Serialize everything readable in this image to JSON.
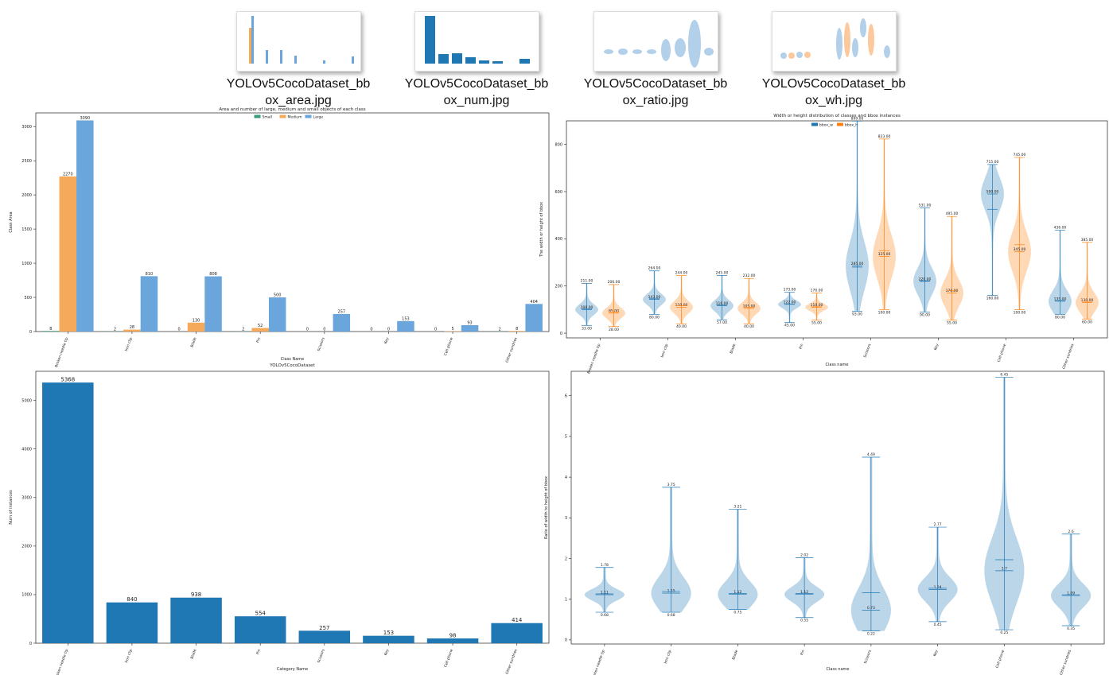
{
  "files": [
    {
      "lines": [
        "YOLOv5CocoDataset_bb",
        "ox_area.jpg"
      ]
    },
    {
      "lines": [
        "YOLOv5CocoDataset_bb",
        "ox_num.jpg"
      ]
    },
    {
      "lines": [
        "YOLOv5CocoDataset_bb",
        "ox_ratio.jpg"
      ]
    },
    {
      "lines": [
        "YOLOv5CocoDataset_bb",
        "ox_wh.jpg"
      ]
    }
  ],
  "chart_data": [
    {
      "type": "bar",
      "title": "Area and number of large, medium and small objects of each class",
      "x_label": "Class Name",
      "y_label": "Class Area",
      "categories": [
        "Broken needle tip",
        "Iron clip",
        "Blade",
        "Pin",
        "Scissors",
        "Key",
        "Cell phone",
        "Other sundries"
      ],
      "series": [
        {
          "name": "Small",
          "color": "#3a9a7a",
          "values": [
            8,
            2,
            0,
            2,
            0,
            0,
            0,
            2
          ]
        },
        {
          "name": "Medium",
          "color": "#f5a95b",
          "values": [
            2270,
            28,
            130,
            52,
            0,
            0,
            5,
            8
          ]
        },
        {
          "name": "Large",
          "color": "#6aa6dc",
          "values": [
            3090,
            810,
            808,
            500,
            257,
            153,
            93,
            404
          ]
        }
      ],
      "ylim": [
        0,
        3200
      ],
      "yticks": [
        0,
        500,
        1000,
        1500,
        2000,
        2500,
        3000
      ],
      "legend": "top"
    },
    {
      "type": "violin",
      "title": "Width or height distribution of classes and bbox instances",
      "x_label": "Class name",
      "y_label": "The width or height of bbox",
      "categories": [
        "Broken needle tip",
        "Iron clip",
        "Blade",
        "Pin",
        "Scissors",
        "Key",
        "Cell phone",
        "Other sundries"
      ],
      "series": [
        {
          "name": "bbox_w",
          "color": "#1f77b4",
          "max": [
            211,
            264,
            245,
            173,
            899,
            531,
            715,
            436
          ],
          "median": [
            100,
            143,
            116,
            122,
            285,
            220,
            590,
            135
          ],
          "mean": [
            104,
            146,
            119,
            123,
            280,
            222,
            525,
            140
          ],
          "min": [
            33,
            80,
            57,
            45,
            93,
            90,
            160,
            80
          ],
          "max_labels": [
            "211.00",
            "264.00",
            "245.00",
            "173.00",
            "899.00",
            "531.00",
            "715.00",
            "436.00"
          ],
          "median_labels": [
            "100.00",
            "143.00",
            "116.00",
            "122.00",
            "285.00",
            "220.00",
            "590.00",
            "135.00"
          ],
          "min_labels": [
            "33.00",
            "80.00",
            "57.00",
            "45.00",
            "93.00",
            "90.00",
            "160.00",
            "80.00"
          ]
        },
        {
          "name": "bbox_h",
          "color": "#ff7f0e",
          "max": [
            206,
            244,
            232,
            170,
            823,
            495,
            745,
            385
          ],
          "median": [
            85,
            110,
            105,
            110,
            325,
            170,
            345,
            130
          ],
          "mean": [
            90,
            116,
            110,
            112,
            350,
            180,
            375,
            135
          ],
          "min": [
            28,
            40,
            40,
            55,
            100,
            55,
            100,
            60
          ],
          "max_labels": [
            "206.00",
            "244.00",
            "232.00",
            "170.00",
            "823.00",
            "495.00",
            "745.00",
            "385.00"
          ],
          "median_labels": [
            "85.00",
            "110.00",
            "105.00",
            "110.00",
            "325.00",
            "170.00",
            "345.00",
            "130.00"
          ],
          "min_labels": [
            "28.00",
            "40.00",
            "40.00",
            "55.00",
            "100.00",
            "55.00",
            "100.00",
            "60.00"
          ]
        }
      ],
      "ylim": [
        -20,
        900
      ],
      "yticks": [
        0,
        200,
        400,
        600,
        800
      ],
      "legend": "top"
    },
    {
      "type": "bar",
      "title": "YOLOv5CocoDataset",
      "x_label": "Category Name",
      "y_label": "Num of instances",
      "categories": [
        "Broken needle tip",
        "Iron clip",
        "Blade",
        "Pin",
        "Scissors",
        "Key",
        "Cell phone",
        "Other sundries"
      ],
      "series": [
        {
          "color": "#1f77b4",
          "values": [
            5368,
            840,
            938,
            554,
            257,
            153,
            98,
            414
          ]
        }
      ],
      "ylim": [
        0,
        5600
      ],
      "yticks": [
        0,
        1000,
        2000,
        3000,
        4000,
        5000
      ]
    },
    {
      "type": "violin",
      "x_label": "Class name",
      "y_label": "Ratio of width to height of bbox",
      "categories": [
        "Broken needle tip",
        "Iron clip",
        "Blade",
        "Pin",
        "Scissors",
        "Key",
        "Cell phone",
        "Other sundries"
      ],
      "series": [
        {
          "color": "#1f77b4",
          "max": [
            1.78,
            3.75,
            3.21,
            2.02,
            4.49,
            2.77,
            6.45,
            2.6
          ],
          "median": [
            1.11,
            1.15,
            1.12,
            1.12,
            0.73,
            1.24,
            1.7,
            1.09
          ],
          "mean": [
            1.13,
            1.19,
            1.14,
            1.14,
            1.16,
            1.27,
            1.97,
            1.11
          ],
          "min": [
            0.68,
            0.68,
            0.75,
            0.55,
            0.22,
            0.45,
            0.25,
            0.35
          ]
        }
      ],
      "ylim": [
        -0.1,
        6.6
      ],
      "yticks": [
        0,
        1,
        2,
        3,
        4,
        5,
        6
      ]
    }
  ]
}
